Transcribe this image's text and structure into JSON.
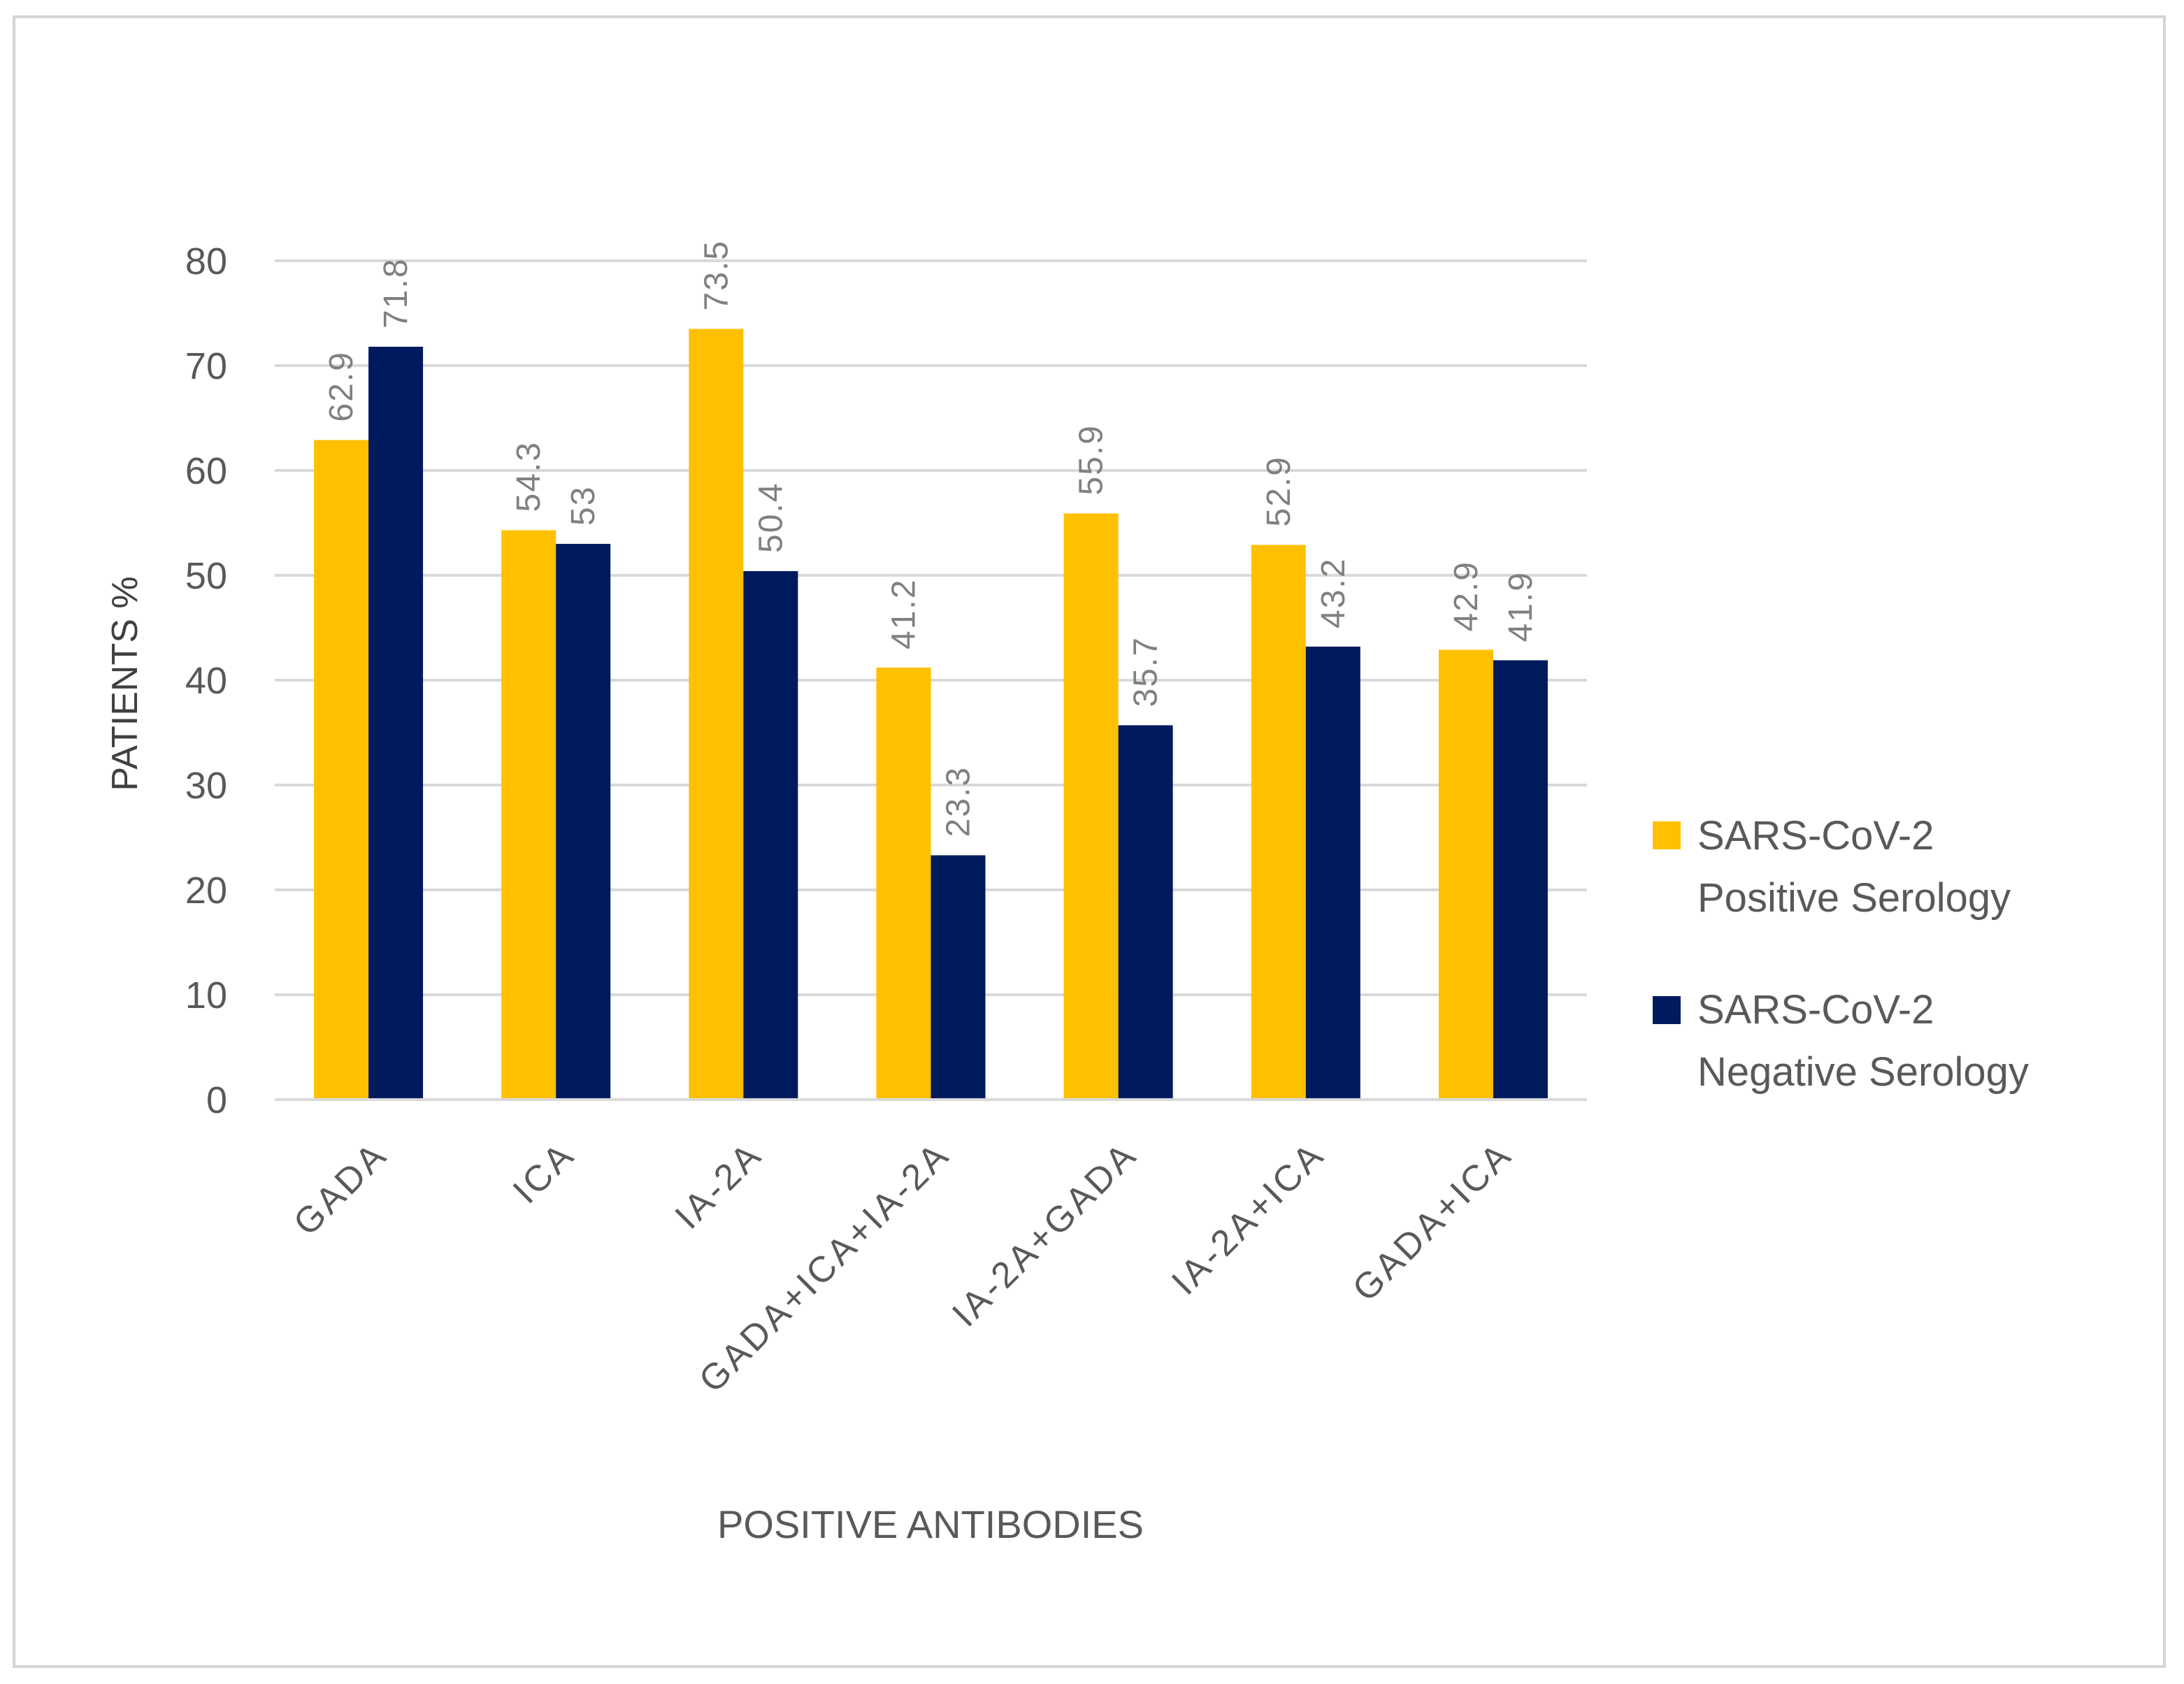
{
  "chart_data": {
    "type": "bar",
    "title": "",
    "xlabel": "POSITIVE ANTIBODIES",
    "ylabel": "PATIENTS %",
    "ylim": [
      0,
      80
    ],
    "yticks": [
      0,
      10,
      20,
      30,
      40,
      50,
      60,
      70,
      80
    ],
    "grid": true,
    "legend_position": "right",
    "categories": [
      "GADA",
      "ICA",
      "IA-2A",
      "GADA+ICA+IA-2A",
      "IA-2A+GADA",
      "IA-2A+ICA",
      "GADA+ICA"
    ],
    "series": [
      {
        "name": "SARS-CoV-2 Positive Serology",
        "legend_lines": [
          "SARS-CoV-2",
          "Positive Serology"
        ],
        "color": "#FFC000",
        "values": [
          62.9,
          54.3,
          73.5,
          41.2,
          55.9,
          52.9,
          42.9
        ]
      },
      {
        "name": "SARS-CoV-2 Negative Serology",
        "legend_lines": [
          "SARS-CoV-2",
          "Negative Serology"
        ],
        "color": "#001A5E",
        "values": [
          71.8,
          53,
          50.4,
          23.3,
          35.7,
          43.2,
          41.9
        ]
      }
    ]
  }
}
